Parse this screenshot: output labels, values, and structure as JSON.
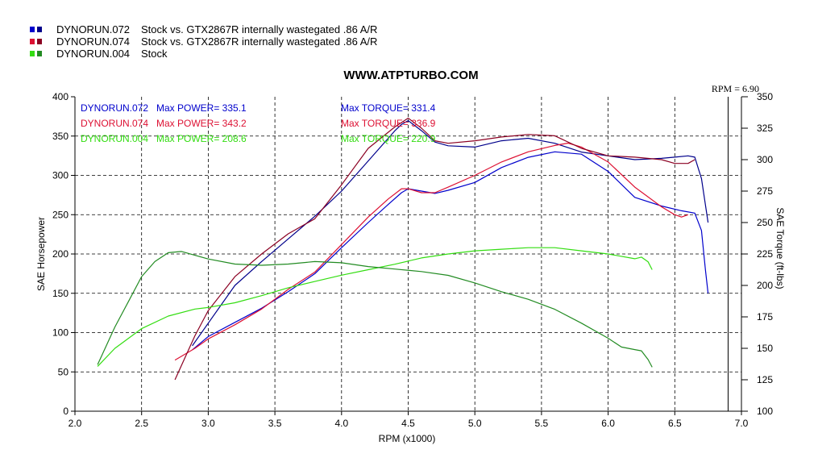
{
  "chart_data": {
    "type": "line",
    "title": "WWW.ATPTURBO.COM",
    "xlabel": "RPM (x1000)",
    "ylabel": "SAE Horsepower",
    "y2label": "SAE Torque (ft-lbs)",
    "xlim": [
      2.0,
      7.0
    ],
    "ylim": [
      0,
      400
    ],
    "y2lim": [
      100,
      350
    ],
    "x_ticks": [
      "2.0",
      "2.5",
      "3.0",
      "3.5",
      "4.0",
      "4.5",
      "5.0",
      "5.5",
      "6.0",
      "6.5",
      "7.0"
    ],
    "y_ticks": [
      "0",
      "50",
      "100",
      "150",
      "200",
      "250",
      "300",
      "350",
      "400"
    ],
    "y2_ticks": [
      "100",
      "125",
      "150",
      "175",
      "200",
      "225",
      "250",
      "275",
      "300",
      "325",
      "350"
    ],
    "grid": true,
    "rpm_marker": 6.9,
    "rpm_note": "RPM = 6.90",
    "legend": [
      {
        "label": "DYNORUN.072",
        "desc": "Stock vs. GTX2867R internally wastegated .86 A/R",
        "colors": [
          "#0000cc",
          "#00008b"
        ]
      },
      {
        "label": "DYNORUN.074",
        "desc": "Stock vs. GTX2867R internally wastegated .86 A/R",
        "colors": [
          "#dd1133",
          "#8b0022"
        ]
      },
      {
        "label": "DYNORUN.004",
        "desc": "Stock",
        "colors": [
          "#33dd11",
          "#228b22"
        ]
      }
    ],
    "annotations": [
      {
        "run": "DYNORUN.072",
        "power": "Max POWER= 335.1",
        "torque": "Max TORQUE= 331.4",
        "color": "#0000cc"
      },
      {
        "run": "DYNORUN.074",
        "power": "Max POWER= 343.2",
        "torque": "Max TORQUE= 336.9",
        "color": "#dd1133"
      },
      {
        "run": "DYNORUN.004",
        "power": "Max POWER= 208.6",
        "torque": "Max TORQUE= 220.9",
        "color": "#33dd11"
      }
    ],
    "series": [
      {
        "run": "DYNORUN.072",
        "measure": "power",
        "axis": "left",
        "color": "#0000cc",
        "points": [
          [
            2.88,
            78
          ],
          [
            3.0,
            95
          ],
          [
            3.2,
            113
          ],
          [
            3.4,
            131
          ],
          [
            3.6,
            152
          ],
          [
            3.8,
            175
          ],
          [
            4.0,
            208
          ],
          [
            4.2,
            240
          ],
          [
            4.35,
            263
          ],
          [
            4.45,
            278
          ],
          [
            4.5,
            283
          ],
          [
            4.6,
            280
          ],
          [
            4.7,
            277
          ],
          [
            4.8,
            281
          ],
          [
            5.0,
            291
          ],
          [
            5.2,
            310
          ],
          [
            5.4,
            323
          ],
          [
            5.6,
            330
          ],
          [
            5.8,
            327
          ],
          [
            6.0,
            305
          ],
          [
            6.2,
            272
          ],
          [
            6.4,
            261
          ],
          [
            6.55,
            255
          ],
          [
            6.65,
            252
          ],
          [
            6.7,
            230
          ],
          [
            6.73,
            180
          ],
          [
            6.75,
            150
          ]
        ]
      },
      {
        "run": "DYNORUN.072",
        "measure": "torque",
        "axis": "right",
        "color": "#00008b",
        "points": [
          [
            2.88,
            152
          ],
          [
            3.0,
            170
          ],
          [
            3.2,
            200
          ],
          [
            3.4,
            219
          ],
          [
            3.6,
            237
          ],
          [
            3.8,
            255
          ],
          [
            4.0,
            275
          ],
          [
            4.2,
            299
          ],
          [
            4.4,
            323
          ],
          [
            4.45,
            328
          ],
          [
            4.5,
            331
          ],
          [
            4.6,
            323
          ],
          [
            4.7,
            314
          ],
          [
            4.8,
            311
          ],
          [
            5.0,
            310
          ],
          [
            5.2,
            315
          ],
          [
            5.4,
            317
          ],
          [
            5.6,
            313
          ],
          [
            5.8,
            306
          ],
          [
            6.0,
            303
          ],
          [
            6.2,
            300
          ],
          [
            6.4,
            301
          ],
          [
            6.5,
            302
          ],
          [
            6.6,
            303
          ],
          [
            6.65,
            302
          ],
          [
            6.7,
            285
          ],
          [
            6.75,
            250
          ]
        ]
      },
      {
        "run": "DYNORUN.074",
        "measure": "power",
        "axis": "left",
        "color": "#dd1133",
        "points": [
          [
            2.75,
            65
          ],
          [
            2.9,
            80
          ],
          [
            3.0,
            92
          ],
          [
            3.2,
            110
          ],
          [
            3.4,
            130
          ],
          [
            3.6,
            155
          ],
          [
            3.8,
            177
          ],
          [
            4.0,
            212
          ],
          [
            4.2,
            247
          ],
          [
            4.35,
            270
          ],
          [
            4.45,
            283
          ],
          [
            4.5,
            283
          ],
          [
            4.6,
            278
          ],
          [
            4.7,
            278
          ],
          [
            4.8,
            285
          ],
          [
            5.0,
            300
          ],
          [
            5.2,
            317
          ],
          [
            5.4,
            330
          ],
          [
            5.6,
            338
          ],
          [
            5.7,
            341
          ],
          [
            5.8,
            336
          ],
          [
            6.0,
            317
          ],
          [
            6.2,
            285
          ],
          [
            6.4,
            260
          ],
          [
            6.5,
            250
          ],
          [
            6.55,
            247
          ],
          [
            6.6,
            250
          ]
        ]
      },
      {
        "run": "DYNORUN.074",
        "measure": "torque",
        "axis": "right",
        "color": "#8b0022",
        "points": [
          [
            2.75,
            125
          ],
          [
            2.9,
            160
          ],
          [
            3.0,
            180
          ],
          [
            3.2,
            207
          ],
          [
            3.4,
            225
          ],
          [
            3.6,
            241
          ],
          [
            3.8,
            253
          ],
          [
            4.0,
            280
          ],
          [
            4.2,
            309
          ],
          [
            4.4,
            326
          ],
          [
            4.5,
            333
          ],
          [
            4.6,
            325
          ],
          [
            4.7,
            315
          ],
          [
            4.8,
            313
          ],
          [
            5.0,
            315
          ],
          [
            5.2,
            318
          ],
          [
            5.4,
            320
          ],
          [
            5.6,
            319
          ],
          [
            5.8,
            309
          ],
          [
            6.0,
            303
          ],
          [
            6.2,
            302
          ],
          [
            6.4,
            300
          ],
          [
            6.5,
            297
          ],
          [
            6.6,
            297
          ],
          [
            6.65,
            300
          ]
        ]
      },
      {
        "run": "DYNORUN.004",
        "measure": "power",
        "axis": "left",
        "color": "#33dd11",
        "points": [
          [
            2.17,
            57
          ],
          [
            2.3,
            80
          ],
          [
            2.5,
            105
          ],
          [
            2.7,
            121
          ],
          [
            2.9,
            130
          ],
          [
            3.0,
            132
          ],
          [
            3.2,
            138
          ],
          [
            3.4,
            147
          ],
          [
            3.6,
            157
          ],
          [
            3.8,
            165
          ],
          [
            4.0,
            173
          ],
          [
            4.2,
            180
          ],
          [
            4.4,
            187
          ],
          [
            4.6,
            195
          ],
          [
            4.8,
            200
          ],
          [
            5.0,
            204
          ],
          [
            5.2,
            206
          ],
          [
            5.4,
            208
          ],
          [
            5.6,
            208
          ],
          [
            5.8,
            204
          ],
          [
            6.0,
            200
          ],
          [
            6.2,
            194
          ],
          [
            6.25,
            196
          ],
          [
            6.3,
            190
          ],
          [
            6.33,
            180
          ]
        ]
      },
      {
        "run": "DYNORUN.004",
        "measure": "torque",
        "axis": "right",
        "color": "#228b22",
        "points": [
          [
            2.17,
            137
          ],
          [
            2.3,
            167
          ],
          [
            2.4,
            187
          ],
          [
            2.5,
            207
          ],
          [
            2.6,
            219
          ],
          [
            2.7,
            226
          ],
          [
            2.8,
            227
          ],
          [
            3.0,
            221
          ],
          [
            3.2,
            217
          ],
          [
            3.4,
            216
          ],
          [
            3.6,
            217
          ],
          [
            3.8,
            219
          ],
          [
            4.0,
            218
          ],
          [
            4.2,
            215
          ],
          [
            4.4,
            213
          ],
          [
            4.6,
            211
          ],
          [
            4.8,
            208
          ],
          [
            5.0,
            202
          ],
          [
            5.2,
            195
          ],
          [
            5.4,
            189
          ],
          [
            5.6,
            181
          ],
          [
            5.8,
            170
          ],
          [
            6.0,
            158
          ],
          [
            6.1,
            151
          ],
          [
            6.2,
            149
          ],
          [
            6.25,
            148
          ],
          [
            6.3,
            141
          ],
          [
            6.33,
            135
          ]
        ]
      }
    ]
  }
}
